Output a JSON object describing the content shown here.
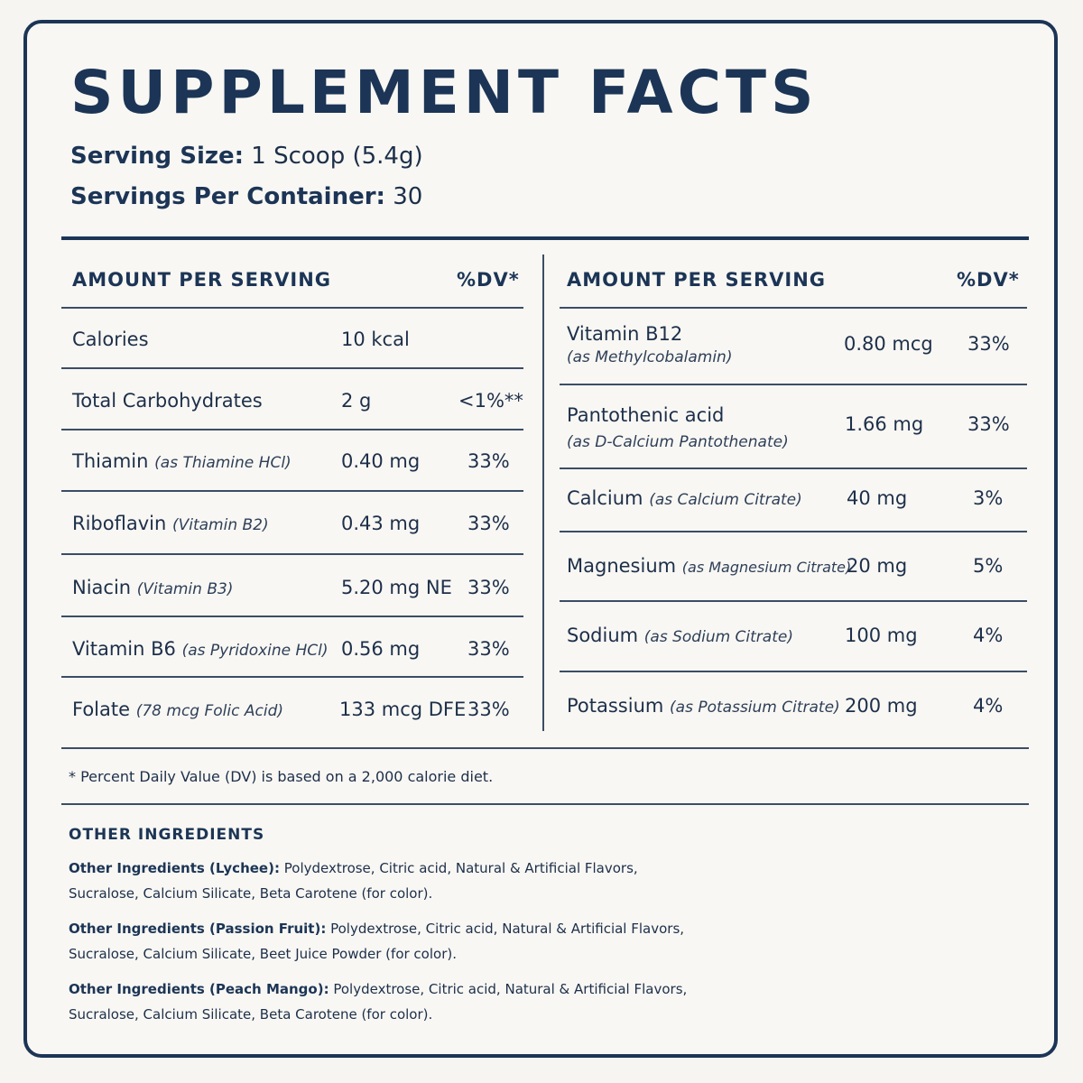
{
  "title": "SUPPLEMENT FACTS",
  "serving_size": {
    "label": "Serving Size:",
    "value": "1 Scoop (5.4g)"
  },
  "servings_per_container": {
    "label": "Servings Per Container:",
    "value": "30"
  },
  "left_table": {
    "header_amount": "AMOUNT PER SERVING",
    "header_dv": "%DV*",
    "rows": [
      {
        "name": "Calories",
        "detail": "",
        "amount": "10 kcal",
        "dv": ""
      },
      {
        "name": "Total Carbohydrates",
        "detail": "",
        "amount": "2 g",
        "dv": "<1%**"
      },
      {
        "name": "Thiamin",
        "detail": "(as Thiamine HCl)",
        "amount": "0.40 mg",
        "dv": "33%"
      },
      {
        "name": "Riboflavin",
        "detail": "(Vitamin B2)",
        "amount": "0.43 mg",
        "dv": "33%"
      },
      {
        "name": "Niacin",
        "detail": "(Vitamin B3)",
        "amount": "5.20 mg NE",
        "dv": "33%"
      },
      {
        "name": "Vitamin B6",
        "detail": "(as Pyridoxine HCl)",
        "amount": "0.56 mg",
        "dv": "33%"
      },
      {
        "name": "Folate",
        "detail": "(78 mcg Folic Acid)",
        "amount": "133 mcg DFE",
        "dv": "33%"
      }
    ]
  },
  "right_table": {
    "header_amount": "AMOUNT PER SERVING",
    "header_dv": "%DV*",
    "rows": [
      {
        "name": "Vitamin B12",
        "detail": "(as Methylcobalamin)",
        "amount": "0.80 mcg",
        "dv": "33%"
      },
      {
        "name": "Pantothenic acid",
        "detail": "(as D-Calcium Pantothenate)",
        "amount": "1.66 mg",
        "dv": "33%"
      },
      {
        "name": "Calcium",
        "detail": "(as Calcium Citrate)",
        "amount": "40 mg",
        "dv": "3%"
      },
      {
        "name": "Magnesium",
        "detail": "(as Magnesium Citrate)",
        "amount": "20 mg",
        "dv": "5%"
      },
      {
        "name": "Sodium",
        "detail": "(as Sodium Citrate)",
        "amount": "100 mg",
        "dv": "4%"
      },
      {
        "name": "Potassium",
        "detail": "(as Potassium Citrate)",
        "amount": "200 mg",
        "dv": "4%"
      }
    ]
  },
  "footnote": "* Percent Daily Value (DV) is based on a 2,000 calorie diet.",
  "other_ingredients": {
    "title": "OTHER INGREDIENTS",
    "items": [
      {
        "label": "Other Ingredients (Lychee):",
        "line1": "Polydextrose, Citric acid, Natural & Artificial Flavors,",
        "line2": "Sucralose, Calcium Silicate, Beta Carotene (for color)."
      },
      {
        "label": "Other Ingredients (Passion Fruit):",
        "line1": "Polydextrose, Citric acid, Natural & Artificial Flavors,",
        "line2": "Sucralose, Calcium Silicate, Beet Juice Powder (for color)."
      },
      {
        "label": "Other Ingredients (Peach Mango):",
        "line1": "Polydextrose, Citric acid, Natural & Artificial Flavors,",
        "line2": "Sucralose, Calcium Silicate, Beta Carotene (for color)."
      }
    ]
  }
}
